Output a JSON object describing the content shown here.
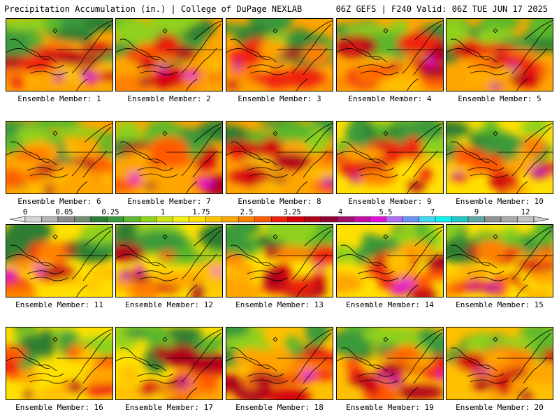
{
  "header": {
    "title_left": "Precipitation Accumulation (in.) | College of DuPage NEXLAB",
    "title_right": "06Z GEFS | F240 Valid: 06Z TUE JUN 17 2025"
  },
  "members": [
    {
      "label": "Ensemble Member: 1"
    },
    {
      "label": "Ensemble Member: 2"
    },
    {
      "label": "Ensemble Member: 3"
    },
    {
      "label": "Ensemble Member: 4"
    },
    {
      "label": "Ensemble Member: 5"
    },
    {
      "label": "Ensemble Member: 6"
    },
    {
      "label": "Ensemble Member: 7"
    },
    {
      "label": "Ensemble Member: 8"
    },
    {
      "label": "Ensemble Member: 9"
    },
    {
      "label": "Ensemble Member: 10"
    },
    {
      "label": "Ensemble Member: 11"
    },
    {
      "label": "Ensemble Member: 12"
    },
    {
      "label": "Ensemble Member: 13"
    },
    {
      "label": "Ensemble Member: 14"
    },
    {
      "label": "Ensemble Member: 15"
    },
    {
      "label": "Ensemble Member: 16"
    },
    {
      "label": "Ensemble Member: 17"
    },
    {
      "label": "Ensemble Member: 18"
    },
    {
      "label": "Ensemble Member: 19"
    },
    {
      "label": "Ensemble Member: 20"
    }
  ],
  "colorbar": {
    "tick_labels": [
      "0",
      "0.05",
      "0.25",
      "1",
      "1.75",
      "2.5",
      "3.25",
      "4",
      "5.5",
      "7",
      "9",
      "12"
    ],
    "colors": [
      "#d4d4d4",
      "#b3b3b3",
      "#8c8c8c",
      "#6e8f6e",
      "#2e7d32",
      "#3a9a3a",
      "#5cb82c",
      "#8fd11e",
      "#c8e415",
      "#f0f010",
      "#ffe000",
      "#ffc000",
      "#ffa500",
      "#ff8000",
      "#ff5a00",
      "#f02010",
      "#d40010",
      "#b0001a",
      "#900030",
      "#a0106a",
      "#c010a0",
      "#e010d8",
      "#b070f0",
      "#7090f0",
      "#40d8f0",
      "#10f0f0",
      "#20c8c8",
      "#60a8a8",
      "#909090",
      "#a8a8a8",
      "#c0c0c0"
    ]
  }
}
